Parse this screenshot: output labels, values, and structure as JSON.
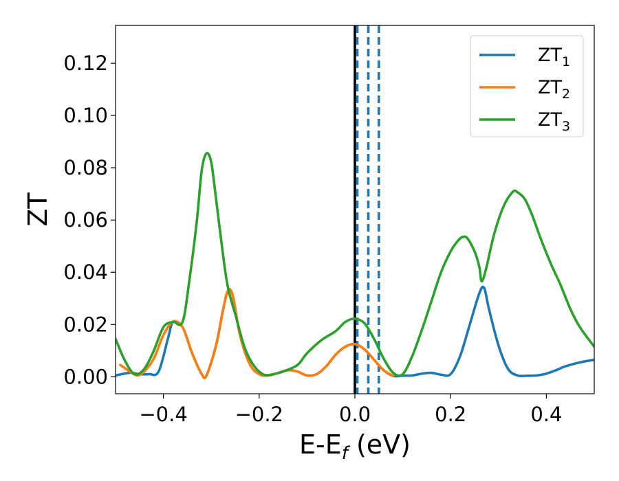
{
  "chart_data": {
    "type": "line",
    "title": "",
    "xlabel": "E-E",
    "xlabel_sub": "f",
    "xlabel_suffix": " (eV)",
    "ylabel": "ZT",
    "xlim": [
      -0.5,
      0.5
    ],
    "ylim": [
      -0.0065,
      0.1345
    ],
    "xticks": [
      -0.4,
      -0.2,
      0.0,
      0.2,
      0.4
    ],
    "xtick_labels": [
      "−0.4",
      "−0.2",
      "0.0",
      "0.2",
      "0.4"
    ],
    "yticks": [
      0.0,
      0.02,
      0.04,
      0.06,
      0.08,
      0.1,
      0.12
    ],
    "ytick_labels": [
      "0.00",
      "0.02",
      "0.04",
      "0.06",
      "0.08",
      "0.10",
      "0.12"
    ],
    "grid": false,
    "legend_position": "top-right",
    "vlines": [
      {
        "x": 0.0,
        "color": "#000000",
        "style": "solid"
      },
      {
        "x": 0.005,
        "color": "#1f77b4",
        "style": "dashed"
      },
      {
        "x": 0.028,
        "color": "#1f77b4",
        "style": "dashed"
      },
      {
        "x": 0.05,
        "color": "#1f77b4",
        "style": "dashed"
      }
    ],
    "series": [
      {
        "name": "ZT",
        "name_sub": "1",
        "color": "#1f77b4",
        "points": [
          [
            -0.5,
            0.0005
          ],
          [
            -0.47,
            0.0015
          ],
          [
            -0.45,
            0.001
          ],
          [
            -0.43,
            0.001
          ],
          [
            -0.41,
            0.002
          ],
          [
            -0.39,
            0.015
          ],
          [
            -0.38,
            0.021
          ],
          [
            -0.36,
            0.019
          ],
          [
            -0.34,
            0.009
          ],
          [
            -0.32,
            0.001
          ],
          [
            -0.31,
            0.0005
          ],
          [
            -0.29,
            0.012
          ],
          [
            -0.275,
            0.026
          ],
          [
            -0.265,
            0.033
          ],
          [
            -0.255,
            0.031
          ],
          [
            -0.24,
            0.016
          ],
          [
            -0.22,
            0.005
          ],
          [
            -0.2,
            0.001
          ],
          [
            -0.18,
            0.0005
          ],
          [
            -0.16,
            0.0015
          ],
          [
            -0.14,
            0.0025
          ],
          [
            -0.12,
            0.002
          ],
          [
            -0.1,
            0.0005
          ],
          [
            -0.08,
            0.001
          ],
          [
            -0.06,
            0.004
          ],
          [
            -0.04,
            0.0085
          ],
          [
            -0.02,
            0.0115
          ],
          [
            0.0,
            0.0125
          ],
          [
            0.02,
            0.0105
          ],
          [
            0.04,
            0.0065
          ],
          [
            0.06,
            0.0025
          ],
          [
            0.08,
            0.0003
          ],
          [
            0.1,
            0.0004
          ],
          [
            0.12,
            0.0005
          ],
          [
            0.14,
            0.0012
          ],
          [
            0.16,
            0.0015
          ],
          [
            0.18,
            0.0008
          ],
          [
            0.2,
            0.001
          ],
          [
            0.22,
            0.008
          ],
          [
            0.24,
            0.02
          ],
          [
            0.26,
            0.032
          ],
          [
            0.27,
            0.034
          ],
          [
            0.28,
            0.026
          ],
          [
            0.3,
            0.012
          ],
          [
            0.32,
            0.003
          ],
          [
            0.34,
            0.0005
          ],
          [
            0.36,
            0.0004
          ],
          [
            0.38,
            0.0005
          ],
          [
            0.4,
            0.0012
          ],
          [
            0.42,
            0.0025
          ],
          [
            0.44,
            0.004
          ],
          [
            0.47,
            0.0055
          ],
          [
            0.5,
            0.0065
          ]
        ]
      },
      {
        "name": "ZT",
        "name_sub": "2",
        "color": "#ff7f0e",
        "points": [
          [
            -0.49,
            0.0045
          ],
          [
            -0.47,
            0.002
          ],
          [
            -0.455,
            0.0005
          ],
          [
            -0.44,
            0.002
          ],
          [
            -0.42,
            0.007
          ],
          [
            -0.4,
            0.016
          ],
          [
            -0.38,
            0.021
          ],
          [
            -0.36,
            0.019
          ],
          [
            -0.34,
            0.009
          ],
          [
            -0.32,
            0.001
          ],
          [
            -0.31,
            0.0005
          ],
          [
            -0.29,
            0.012
          ],
          [
            -0.275,
            0.026
          ],
          [
            -0.265,
            0.033
          ],
          [
            -0.255,
            0.031
          ],
          [
            -0.24,
            0.016
          ],
          [
            -0.22,
            0.005
          ],
          [
            -0.2,
            0.001
          ],
          [
            -0.18,
            0.0005
          ],
          [
            -0.16,
            0.0015
          ],
          [
            -0.14,
            0.0025
          ],
          [
            -0.12,
            0.002
          ],
          [
            -0.1,
            0.0005
          ],
          [
            -0.08,
            0.001
          ],
          [
            -0.06,
            0.004
          ],
          [
            -0.04,
            0.0085
          ],
          [
            -0.02,
            0.0115
          ],
          [
            0.0,
            0.0125
          ],
          [
            0.02,
            0.0105
          ],
          [
            0.04,
            0.0065
          ],
          [
            0.06,
            0.0025
          ],
          [
            0.08,
            0.0003
          ]
        ]
      },
      {
        "name": "ZT",
        "name_sub": "3",
        "color": "#2ca02c",
        "points": [
          [
            -0.5,
            0.0145
          ],
          [
            -0.48,
            0.006
          ],
          [
            -0.46,
            0.001
          ],
          [
            -0.44,
            0.003
          ],
          [
            -0.42,
            0.01
          ],
          [
            -0.4,
            0.019
          ],
          [
            -0.38,
            0.021
          ],
          [
            -0.36,
            0.021
          ],
          [
            -0.345,
            0.038
          ],
          [
            -0.33,
            0.06
          ],
          [
            -0.32,
            0.079
          ],
          [
            -0.31,
            0.0855
          ],
          [
            -0.3,
            0.082
          ],
          [
            -0.29,
            0.068
          ],
          [
            -0.275,
            0.046
          ],
          [
            -0.265,
            0.034
          ],
          [
            -0.25,
            0.024
          ],
          [
            -0.23,
            0.011
          ],
          [
            -0.21,
            0.004
          ],
          [
            -0.19,
            0.0008
          ],
          [
            -0.17,
            0.001
          ],
          [
            -0.15,
            0.002
          ],
          [
            -0.12,
            0.0045
          ],
          [
            -0.1,
            0.009
          ],
          [
            -0.07,
            0.014
          ],
          [
            -0.04,
            0.0175
          ],
          [
            -0.02,
            0.021
          ],
          [
            0.0,
            0.0222
          ],
          [
            0.02,
            0.0205
          ],
          [
            0.04,
            0.0145
          ],
          [
            0.06,
            0.007
          ],
          [
            0.08,
            0.0015
          ],
          [
            0.1,
            0.001
          ],
          [
            0.12,
            0.008
          ],
          [
            0.14,
            0.018
          ],
          [
            0.16,
            0.029
          ],
          [
            0.18,
            0.04
          ],
          [
            0.2,
            0.048
          ],
          [
            0.215,
            0.052
          ],
          [
            0.225,
            0.0535
          ],
          [
            0.235,
            0.053
          ],
          [
            0.25,
            0.048
          ],
          [
            0.26,
            0.042
          ],
          [
            0.265,
            0.0365
          ],
          [
            0.275,
            0.042
          ],
          [
            0.29,
            0.054
          ],
          [
            0.31,
            0.065
          ],
          [
            0.33,
            0.0708
          ],
          [
            0.34,
            0.0706
          ],
          [
            0.355,
            0.068
          ],
          [
            0.37,
            0.062
          ],
          [
            0.39,
            0.052
          ],
          [
            0.41,
            0.043
          ],
          [
            0.43,
            0.035
          ],
          [
            0.45,
            0.026
          ],
          [
            0.47,
            0.019
          ],
          [
            0.5,
            0.0115
          ]
        ]
      }
    ]
  }
}
